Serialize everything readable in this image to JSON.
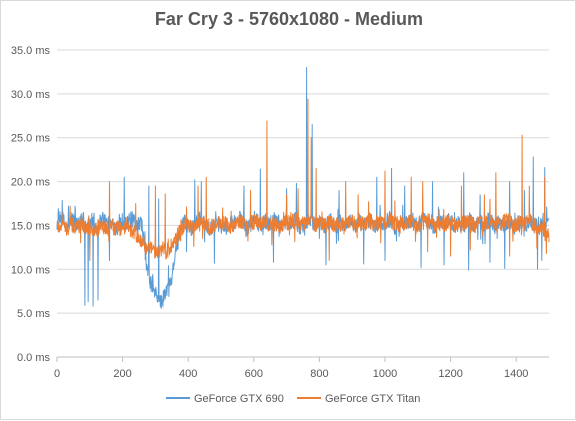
{
  "chart_data": {
    "type": "line",
    "title": "Far Cry 3 - 5760x1080 - Medium",
    "xlabel": "",
    "ylabel": "",
    "xlim": [
      0,
      1500
    ],
    "ylim": [
      0,
      35
    ],
    "x_ticks": [
      "0",
      "200",
      "400",
      "600",
      "800",
      "1000",
      "1200",
      "1400"
    ],
    "y_ticks": [
      "0.0 ms",
      "5.0 ms",
      "10.0 ms",
      "15.0 ms",
      "20.0 ms",
      "25.0 ms",
      "30.0 ms",
      "35.0 ms"
    ],
    "grid": true,
    "legend_position": "bottom",
    "series": [
      {
        "name": "GeForce GTX 690",
        "color": "#5b9bd5",
        "values": [
          15.2,
          16.0,
          14.5,
          15.8,
          15.0,
          16.2,
          14.8,
          15.5,
          14.6,
          15.9,
          15.3,
          15.0,
          14.7,
          15.6,
          15.1,
          15.8,
          14.9,
          15.4,
          10.5,
          8.0,
          7.0,
          6.2,
          7.5,
          9.0,
          12.5,
          14.8,
          15.5,
          14.7,
          15.3,
          15.9,
          15.2,
          14.6,
          15.8,
          15.0,
          14.7,
          15.6,
          15.3,
          15.9,
          14.6,
          15.2,
          15.7,
          14.8,
          15.5,
          15.0,
          15.8,
          14.9,
          15.4,
          15.1,
          15.6,
          14.8,
          15.3,
          15.7,
          14.9,
          15.2,
          15.0,
          15.6,
          14.8,
          15.4,
          15.1,
          15.5,
          14.9,
          15.3,
          15.0,
          15.7,
          14.8,
          15.5,
          15.2,
          15.9,
          14.7,
          15.3,
          15.1,
          15.6,
          14.9,
          15.4,
          16.0,
          15.2,
          14.8,
          15.5,
          15.1,
          15.7,
          14.9,
          15.3,
          15.0,
          15.6,
          14.8,
          15.4,
          15.2,
          15.8,
          14.9,
          15.3,
          15.1,
          15.6,
          14.8,
          15.5,
          15.0,
          15.3,
          14.9,
          15.4,
          15.1,
          15.7
        ],
        "spikes": [
          [
            35,
            17.2
          ],
          [
            55,
            17.2
          ],
          [
            85,
            5.9
          ],
          [
            95,
            6.3
          ],
          [
            110,
            5.8
          ],
          [
            125,
            6.5
          ],
          [
            140,
            16.5
          ],
          [
            160,
            11.0
          ],
          [
            185,
            15.5
          ],
          [
            205,
            20.5
          ],
          [
            280,
            19.5
          ],
          [
            290,
            9.2
          ],
          [
            310,
            18.0
          ],
          [
            340,
            10.4
          ],
          [
            395,
            12.0
          ],
          [
            420,
            20.2
          ],
          [
            440,
            20.0
          ],
          [
            480,
            10.7
          ],
          [
            570,
            19.5
          ],
          [
            620,
            21.4
          ],
          [
            660,
            10.8
          ],
          [
            700,
            19.2
          ],
          [
            730,
            19.8
          ],
          [
            761,
            33.0
          ],
          [
            778,
            26.5
          ],
          [
            820,
            10.5
          ],
          [
            860,
            19.0
          ],
          [
            935,
            10.6
          ],
          [
            975,
            20.5
          ],
          [
            1000,
            11.0
          ],
          [
            1020,
            21.5
          ],
          [
            1060,
            19.5
          ],
          [
            1110,
            10.2
          ],
          [
            1145,
            20.0
          ],
          [
            1180,
            10.5
          ],
          [
            1240,
            21.0
          ],
          [
            1255,
            9.9
          ],
          [
            1290,
            18.5
          ],
          [
            1320,
            10.8
          ],
          [
            1365,
            10.1
          ],
          [
            1380,
            20.0
          ],
          [
            1425,
            19.0
          ],
          [
            1452,
            22.8
          ],
          [
            1465,
            10.0
          ],
          [
            1478,
            11.0
          ],
          [
            1487,
            21.6
          ]
        ]
      },
      {
        "name": "GeForce GTX Titan",
        "color": "#ed7d31",
        "values": [
          14.8,
          15.1,
          14.6,
          15.0,
          14.7,
          15.2,
          14.9,
          14.8,
          14.5,
          15.0,
          14.6,
          14.9,
          14.5,
          14.8,
          14.6,
          14.4,
          13.8,
          13.2,
          12.5,
          12.2,
          11.8,
          12.4,
          12.0,
          12.6,
          13.5,
          14.6,
          15.0,
          14.7,
          15.1,
          15.3,
          15.0,
          14.8,
          15.2,
          15.4,
          15.1,
          14.9,
          15.3,
          15.5,
          15.0,
          15.2,
          15.6,
          15.1,
          15.4,
          15.0,
          15.3,
          14.9,
          15.5,
          15.2,
          15.7,
          15.1,
          15.4,
          15.6,
          15.0,
          15.3,
          15.1,
          15.5,
          14.9,
          15.2,
          15.4,
          15.6,
          15.0,
          15.3,
          15.1,
          15.5,
          15.0,
          15.4,
          15.2,
          15.6,
          15.0,
          15.3,
          15.1,
          15.5,
          14.9,
          15.2,
          15.4,
          15.6,
          15.0,
          15.3,
          15.1,
          15.5,
          15.0,
          15.4,
          15.2,
          15.6,
          15.0,
          15.3,
          15.1,
          15.5,
          14.9,
          15.2,
          15.4,
          15.6,
          15.0,
          15.3,
          15.1,
          15.5,
          15.0,
          14.8,
          14.6,
          14.3
        ],
        "spikes": [
          [
            15,
            16.5
          ],
          [
            40,
            17.2
          ],
          [
            75,
            16.3
          ],
          [
            100,
            11.0
          ],
          [
            160,
            20.0
          ],
          [
            240,
            17.5
          ],
          [
            300,
            19.5
          ],
          [
            330,
            18.6
          ],
          [
            430,
            19.5
          ],
          [
            455,
            20.5
          ],
          [
            505,
            17.0
          ],
          [
            590,
            19.0
          ],
          [
            640,
            26.9
          ],
          [
            655,
            12.8
          ],
          [
            700,
            18.5
          ],
          [
            735,
            19.2
          ],
          [
            765,
            29.4
          ],
          [
            775,
            25.0
          ],
          [
            790,
            21.5
          ],
          [
            830,
            11.0
          ],
          [
            880,
            20.0
          ],
          [
            918,
            18.5
          ],
          [
            950,
            17.7
          ],
          [
            1000,
            21.2
          ],
          [
            1030,
            17.8
          ],
          [
            1080,
            20.5
          ],
          [
            1115,
            20.0
          ],
          [
            1130,
            12.0
          ],
          [
            1200,
            11.5
          ],
          [
            1233,
            19.5
          ],
          [
            1260,
            12.2
          ],
          [
            1303,
            18.5
          ],
          [
            1338,
            21.0
          ],
          [
            1380,
            11.5
          ],
          [
            1390,
            13.2
          ],
          [
            1418,
            25.3
          ],
          [
            1440,
            19.5
          ],
          [
            1487,
            20.5
          ],
          [
            1492,
            11.8
          ]
        ]
      }
    ]
  }
}
